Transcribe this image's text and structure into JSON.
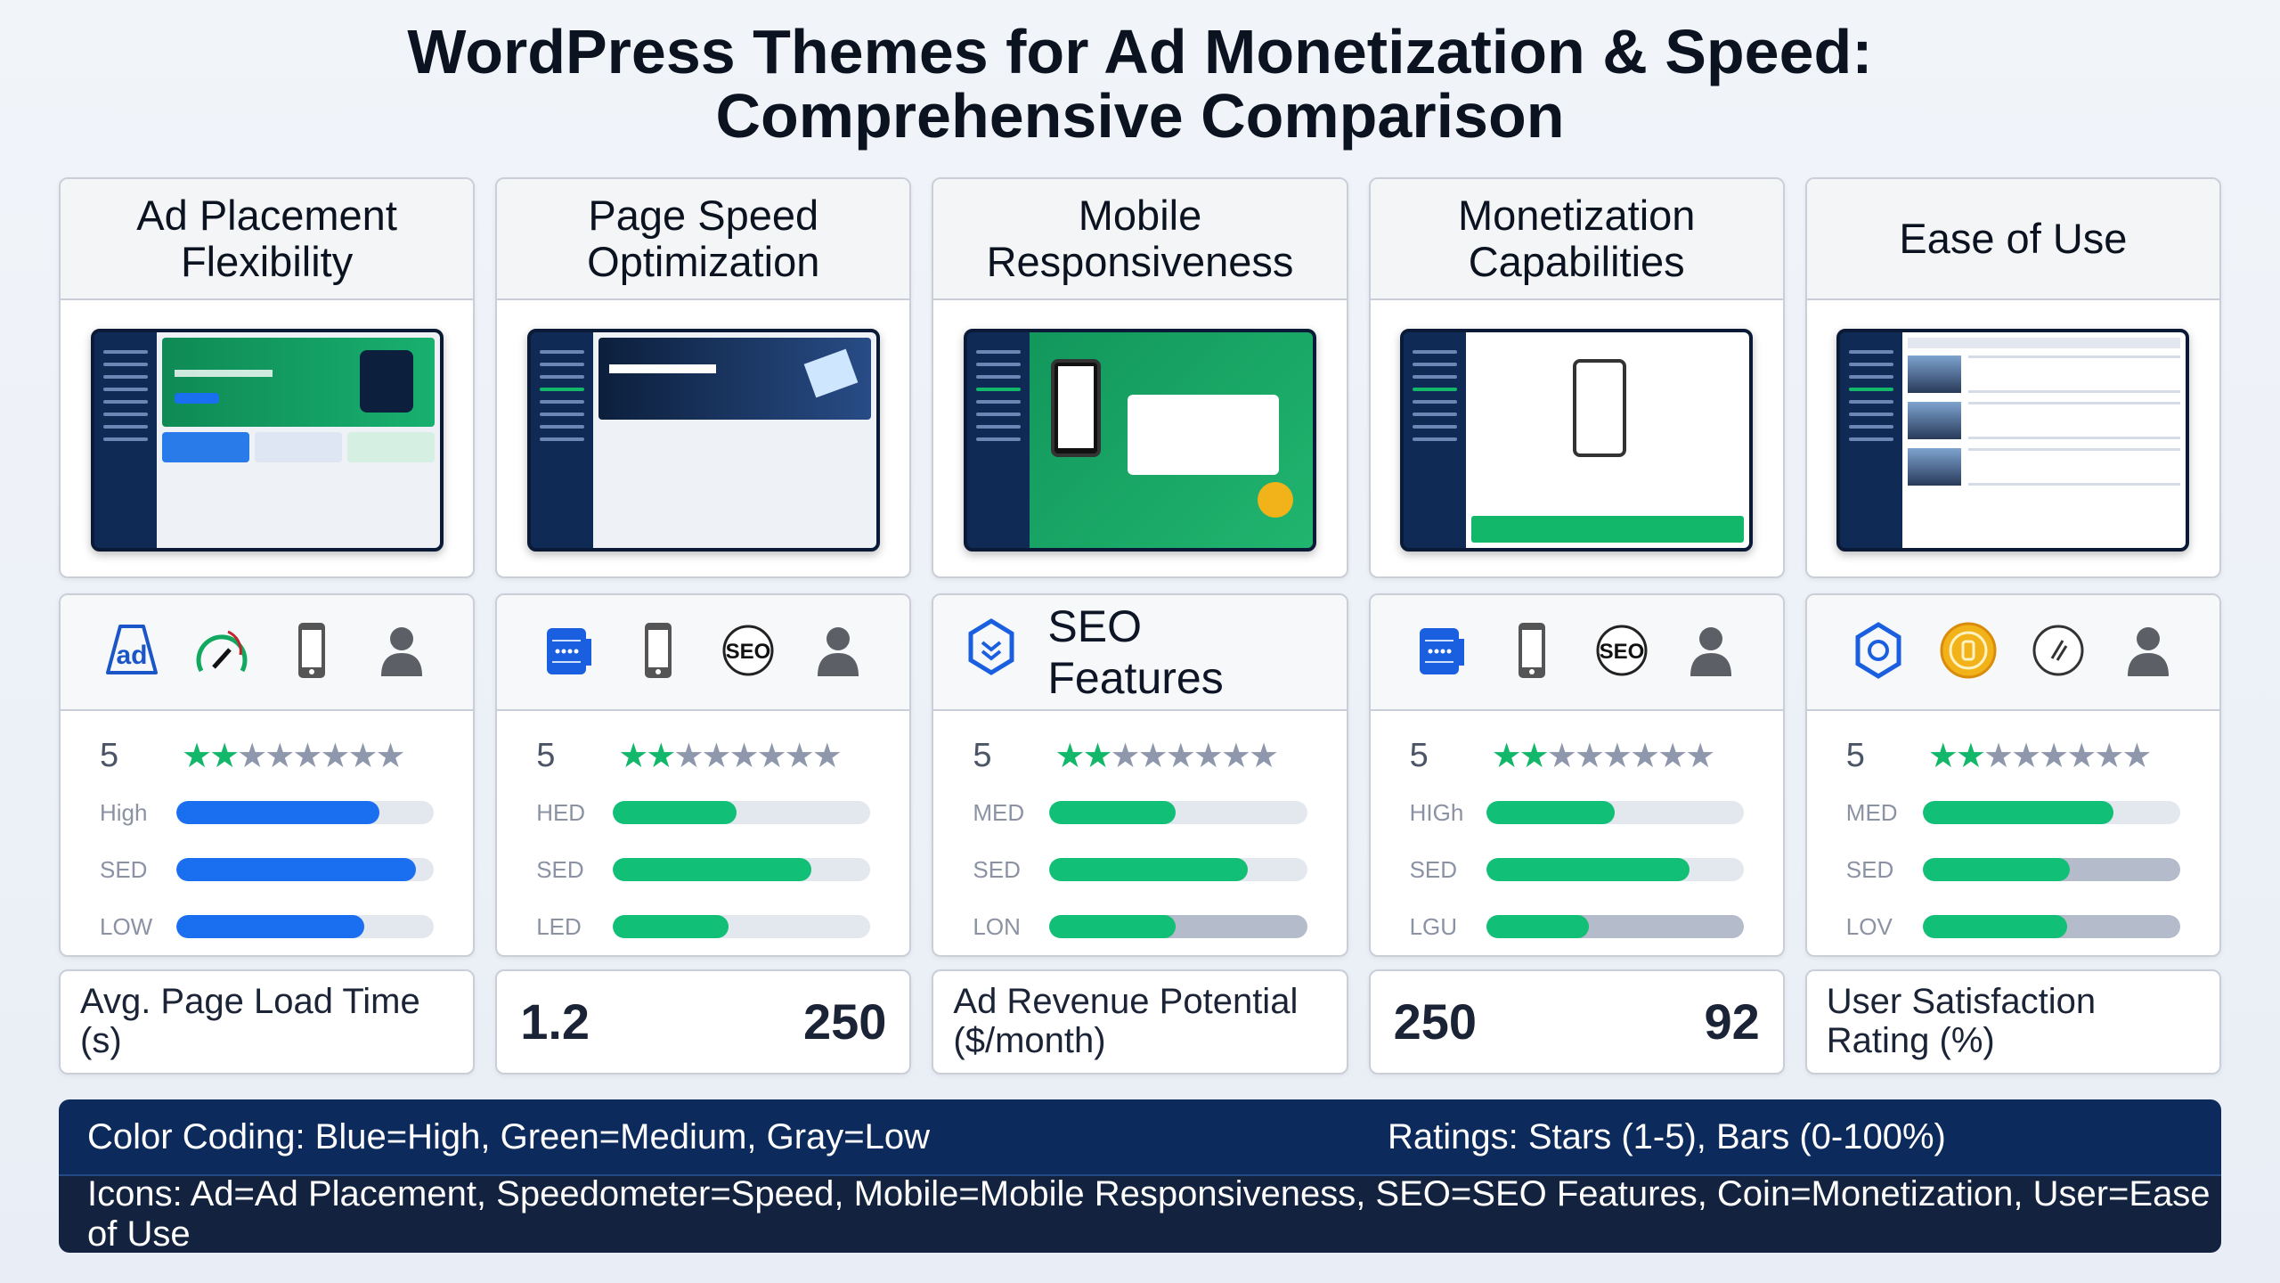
{
  "title": {
    "line1": "WordPress Themes for Ad Monetization & Speed:",
    "line2": "Comprehensive Comparison"
  },
  "colors": {
    "high": "#1a6ff0",
    "medium": "#12bf76",
    "low": "#b4bccb",
    "star_on": "#12b76a",
    "star_off": "#8e97ab",
    "banner": "#0c2a5c"
  },
  "cards": [
    {
      "title": "Ad Placement Flexibility",
      "icons": [
        "ad-icon",
        "speedometer-icon",
        "mobile-icon",
        "user-icon"
      ],
      "rating": "5",
      "stars_filled": 2,
      "stars_total": 8,
      "thumb": "green-hero",
      "bars": [
        {
          "label": "High",
          "value": 79,
          "color": "high",
          "track": "light"
        },
        {
          "label": "SED",
          "value": 93,
          "color": "high",
          "track": "light"
        },
        {
          "label": "LOW",
          "value": 73,
          "color": "high",
          "track": "light"
        }
      ]
    },
    {
      "title": "Page Speed Optimization",
      "icons": [
        "server-icon",
        "mobile-icon",
        "seo-icon",
        "user-icon"
      ],
      "rating": "5",
      "stars_filled": 2,
      "stars_total": 8,
      "thumb": "dark-hero",
      "bars": [
        {
          "label": "HED",
          "value": 48,
          "color": "medium",
          "track": "light"
        },
        {
          "label": "SED",
          "value": 77,
          "color": "medium",
          "track": "light"
        },
        {
          "label": "LED",
          "value": 45,
          "color": "medium",
          "track": "light"
        }
      ]
    },
    {
      "title": "Mobile Responsiveness",
      "icons": [
        "shield-icon"
      ],
      "icon_text": "SEO Features",
      "rating": "5",
      "stars_filled": 2,
      "stars_total": 8,
      "thumb": "green-phone",
      "bars": [
        {
          "label": "MED",
          "value": 49,
          "color": "medium",
          "track": "light"
        },
        {
          "label": "SED",
          "value": 77,
          "color": "medium",
          "track": "light"
        },
        {
          "label": "LON",
          "value": 49,
          "color": "medium",
          "track": "gray"
        }
      ]
    },
    {
      "title": "Monetization Capabilities",
      "icons": [
        "server-icon",
        "mobile-icon",
        "seo-icon",
        "user-icon"
      ],
      "rating": "5",
      "stars_filled": 2,
      "stars_total": 8,
      "thumb": "white-phone",
      "bars": [
        {
          "label": "HIGh",
          "value": 50,
          "color": "medium",
          "track": "light"
        },
        {
          "label": "SED",
          "value": 79,
          "color": "medium",
          "track": "light"
        },
        {
          "label": "LGU",
          "value": 40,
          "color": "medium",
          "track": "gray"
        }
      ]
    },
    {
      "title": "Ease of Use",
      "icons": [
        "hexagon-icon",
        "coin-icon",
        "circle-slash-icon",
        "user-icon"
      ],
      "rating": "5",
      "stars_filled": 2,
      "stars_total": 8,
      "thumb": "table",
      "bars": [
        {
          "label": "MED",
          "value": 74,
          "color": "medium",
          "track": "light"
        },
        {
          "label": "SED",
          "value": 57,
          "color": "medium",
          "track": "gray"
        },
        {
          "label": "LOV",
          "value": 56,
          "color": "medium",
          "track": "gray"
        }
      ]
    }
  ],
  "bottom": [
    {
      "type": "label",
      "text": "Avg. Page Load Time (s)"
    },
    {
      "type": "numbers",
      "left": "1.2",
      "right": "250"
    },
    {
      "type": "label",
      "text": "Ad Revenue Potential ($/month)"
    },
    {
      "type": "numbers",
      "left": "250",
      "right": "92"
    },
    {
      "type": "label",
      "text": "User Satisfaction Rating (%)"
    }
  ],
  "legend": {
    "color_coding": "Color Coding: Blue=High, Green=Medium, Gray=Low",
    "ratings": "Ratings: Stars (1-5), Bars (0-100%)",
    "icons": "Icons: Ad=Ad Placement, Speedometer=Speed, Mobile=Mobile Responsiveness, SEO=SEO Features, Coin=Monetization, User=Ease of Use"
  }
}
